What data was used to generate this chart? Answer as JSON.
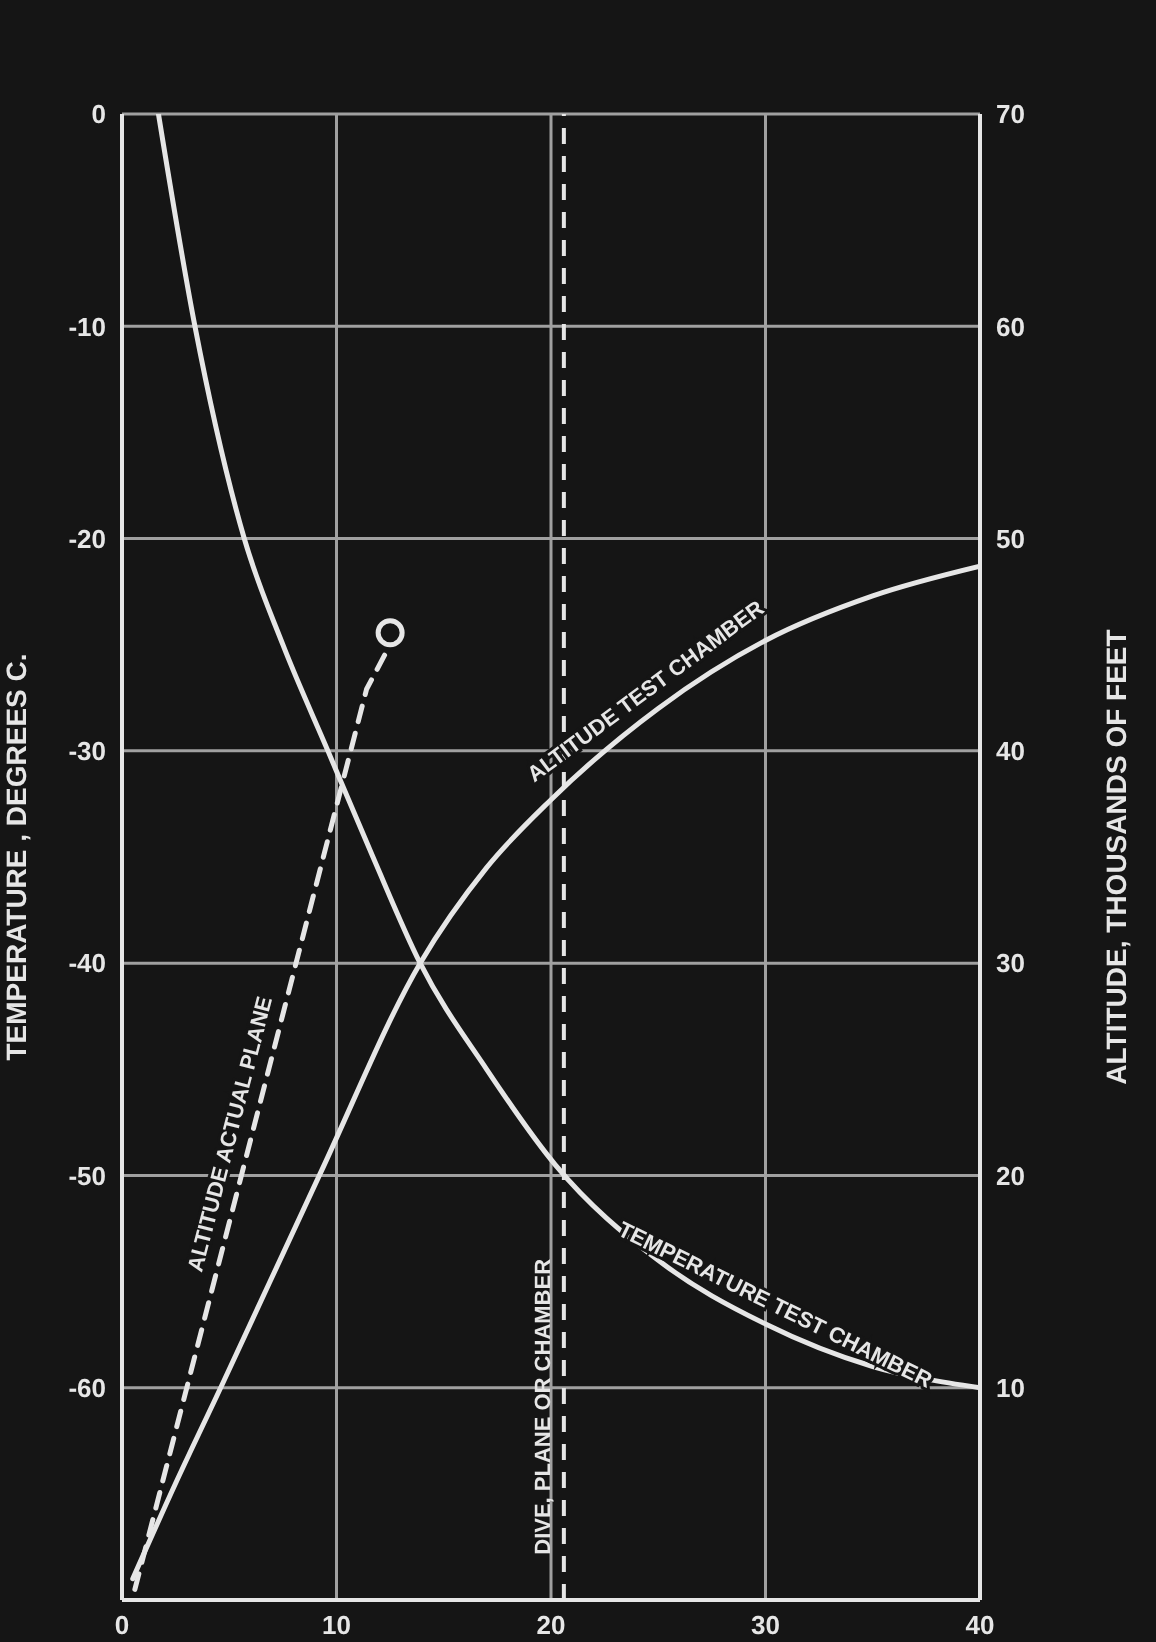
{
  "chart_data": {
    "type": "line",
    "ylabel": "TEMPERATURE , DEGREES C.",
    "y2label": "ALTITUDE, THOUSANDS OF FEET",
    "xlim": [
      0,
      40
    ],
    "xticks": [
      0,
      10,
      20,
      30,
      40
    ],
    "ylim": [
      -70,
      0
    ],
    "yticks": [
      -60,
      -50,
      -40,
      -30,
      -20,
      -10,
      0
    ],
    "y2lim": [
      0,
      70
    ],
    "y2ticks": [
      10,
      20,
      30,
      40,
      50,
      60,
      70
    ],
    "grid": true,
    "series": [
      {
        "name": "TEMPERATURE TEST CHAMBER",
        "color": "#e6e6e6",
        "x": [
          1.7,
          3.4,
          5.7,
          7.5,
          9.6,
          11.7,
          13.9,
          17,
          20.2,
          25,
          30,
          35,
          40
        ],
        "values": [
          0,
          -10,
          -20,
          -25,
          -30,
          -35,
          -40,
          -45,
          -49.5,
          -54,
          -57,
          -59,
          -60
        ]
      },
      {
        "name": "ALTITUDE TEST CHAMBER",
        "color": "#e6e6e6",
        "axis": "y2",
        "x": [
          0.5,
          2.5,
          4.6,
          9.2,
          13.9,
          17,
          20,
          25,
          30,
          35,
          40
        ],
        "values": [
          1,
          5.5,
          10,
          20,
          30,
          34.5,
          37.7,
          42,
          45.2,
          47.3,
          48.7
        ]
      },
      {
        "name": "ALTITUDE ACTUAL PLANE",
        "color": "#e6e6e6",
        "axis": "y2",
        "line_style": "dashed",
        "x": [
          0.6,
          11.4,
          12.5
        ],
        "values": [
          0.5,
          42.9,
          45
        ]
      }
    ],
    "ref_lines": [
      {
        "axis": "x",
        "value": 20.6,
        "label": "DIVE, PLANE OR CHAMBER",
        "line_style": "dashed",
        "color": "#e6e6e6"
      }
    ]
  }
}
